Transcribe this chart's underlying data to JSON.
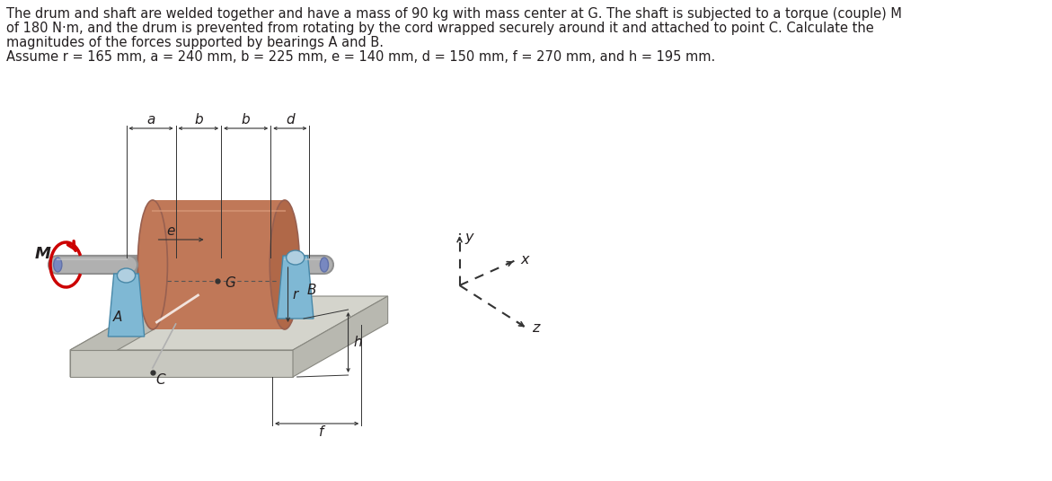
{
  "title_lines": [
    "The drum and shaft are welded together and have a mass of 90 kg with mass center at G. The shaft is subjected to a torque (couple) M",
    "of 180 N·m, and the drum is prevented from rotating by the cord wrapped securely around it and attached to point C. Calculate the",
    "magnitudes of the forces supported by bearings A and B.",
    "Assume r = 165 mm, a = 240 mm, b = 225 mm, e = 140 mm, d = 150 mm, f = 270 mm, and h = 195 mm."
  ],
  "text_color": "#231f20",
  "background_color": "#ffffff",
  "drum_color": "#c07858",
  "drum_face_color": "#b06848",
  "shaft_color": "#909090",
  "shaft_highlight": "#c8c8c8",
  "bearing_color": "#7fb8d4",
  "bearing_edge": "#4888a8",
  "plate_top": "#d4d4cc",
  "plate_left": "#bcbcb4",
  "plate_front": "#c8c8c0",
  "plate_right": "#b8b8b0",
  "torque_color": "#cc0000",
  "dim_color": "#333333",
  "shaft_end_color": "#7888c0"
}
